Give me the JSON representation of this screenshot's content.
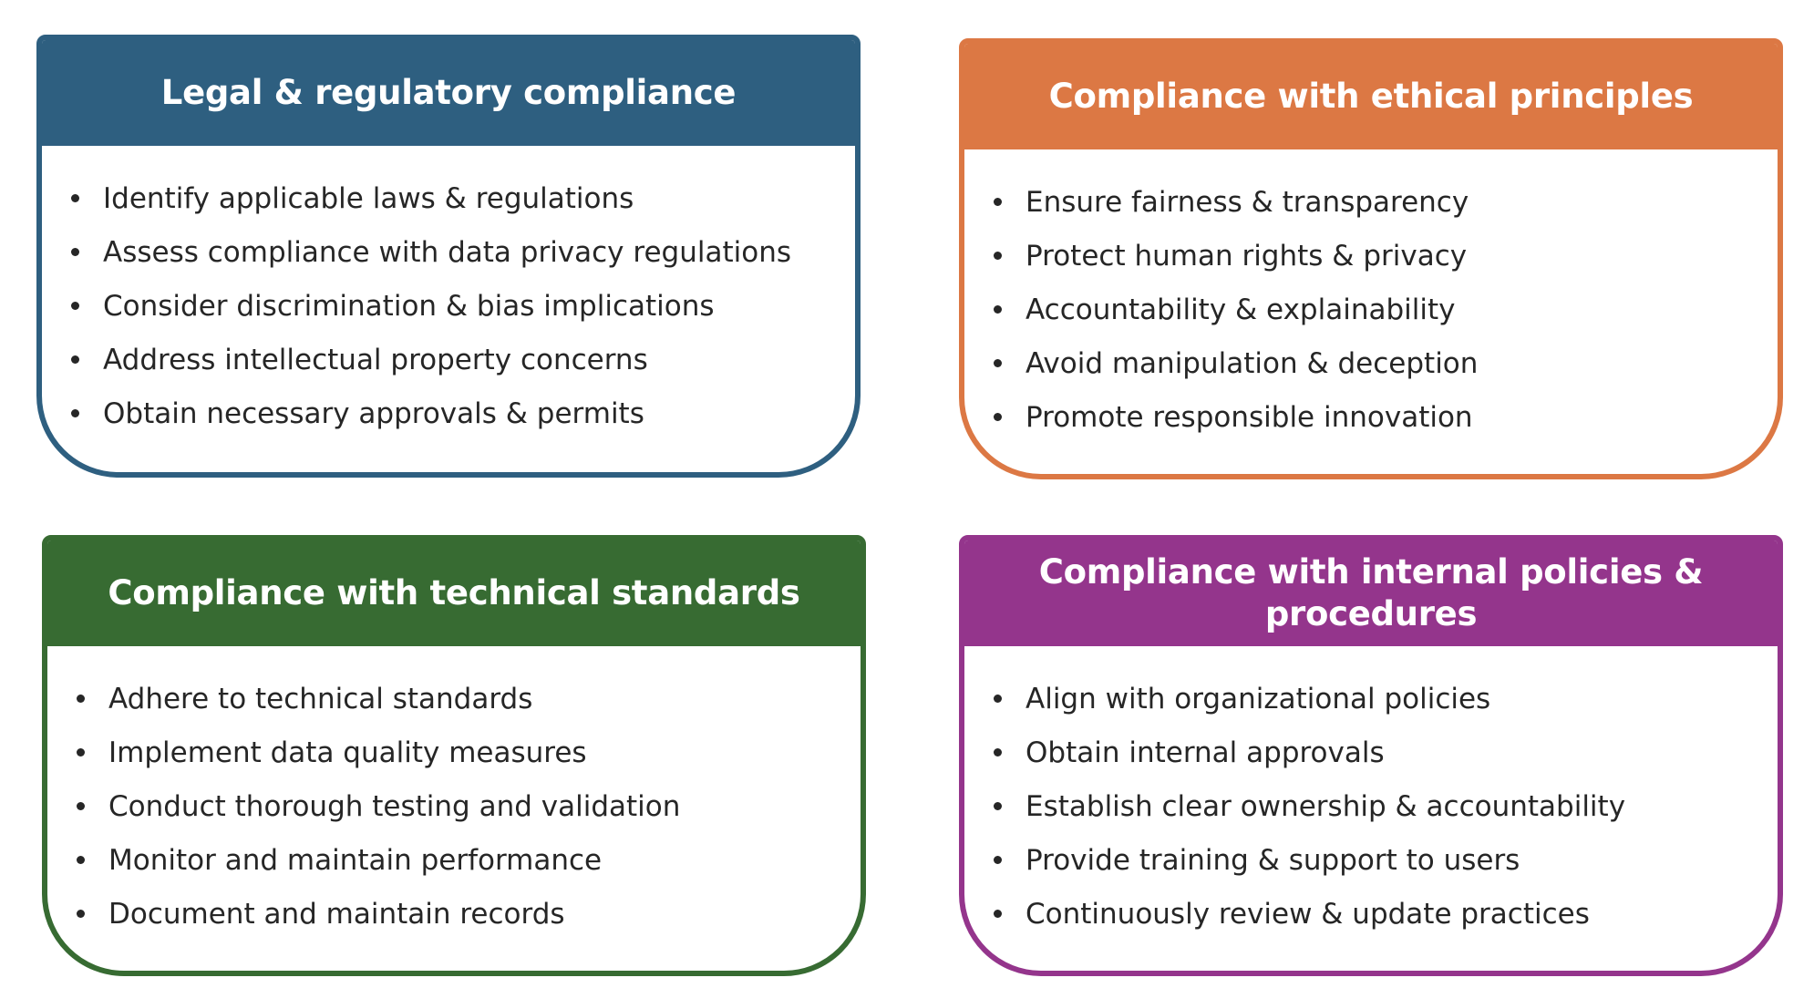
{
  "cards": [
    {
      "title": "Legal & regulatory compliance",
      "color": "#2e5f80",
      "items": [
        "Identify applicable laws & regulations",
        "Assess compliance with data privacy regulations",
        "Consider discrimination & bias implications",
        "Address intellectual property concerns",
        "Obtain necessary approvals & permits"
      ]
    },
    {
      "title": "Compliance with ethical principles",
      "color": "#dc7844",
      "items": [
        "Ensure fairness & transparency",
        "Protect human rights & privacy",
        "Accountability & explainability",
        "Avoid manipulation & deception",
        "Promote responsible innovation"
      ]
    },
    {
      "title": "Compliance with technical standards",
      "color": "#376b32",
      "items": [
        "Adhere to technical standards",
        "Implement data quality measures",
        "Conduct thorough testing and validation",
        "Monitor and maintain performance",
        "Document and maintain records"
      ]
    },
    {
      "title": "Compliance with internal policies & procedures",
      "color": "#94358c",
      "items": [
        "Align with organizational policies",
        "Obtain internal approvals",
        "Establish clear ownership & accountability",
        "Provide training & support to users",
        "Continuously review & update practices"
      ]
    }
  ]
}
